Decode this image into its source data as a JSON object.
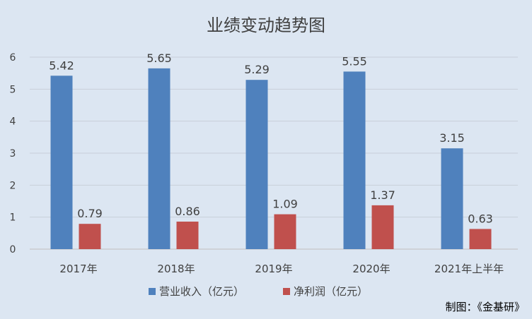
{
  "chart_data": {
    "type": "bar",
    "title": "业绩变动趋势图",
    "categories": [
      "2017年",
      "2018年",
      "2019年",
      "2020年",
      "2021年上半年"
    ],
    "series": [
      {
        "name": "营业收入（亿元）",
        "values": [
          5.42,
          5.65,
          5.29,
          5.55,
          3.15
        ],
        "color": "#4f81bd"
      },
      {
        "name": "净利润（亿元）",
        "values": [
          0.79,
          0.86,
          1.09,
          1.37,
          0.63
        ],
        "color": "#c0504d"
      }
    ],
    "ylim": [
      0,
      6
    ],
    "yticks": [
      0,
      1,
      2,
      3,
      4,
      5,
      6
    ],
    "grid": true,
    "legend": "bottom",
    "data_labels": true
  },
  "credit": "制图：《金基研》"
}
